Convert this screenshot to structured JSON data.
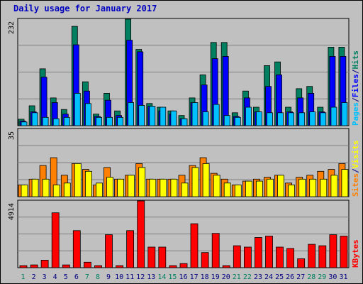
{
  "chart_data": {
    "type": "bar",
    "title": "Daily usage for January 2017",
    "categories": [
      "1",
      "2",
      "3",
      "4",
      "5",
      "6",
      "7",
      "8",
      "9",
      "10",
      "11",
      "12",
      "13",
      "14",
      "15",
      "16",
      "17",
      "18",
      "19",
      "20",
      "21",
      "22",
      "23",
      "24",
      "25",
      "26",
      "27",
      "28",
      "29",
      "30",
      "31"
    ],
    "weekend_days": [
      "1",
      "7",
      "8",
      "14",
      "15",
      "21",
      "22",
      "28",
      "29"
    ],
    "panels": [
      {
        "name": "pages-files-hits",
        "ymax_label": "232",
        "ymax": 232,
        "legend": [
          {
            "text": "Pages",
            "color": "#00c0ff"
          },
          {
            "text": "/",
            "color": "#000080"
          },
          {
            "text": "Files",
            "color": "#0000ff"
          },
          {
            "text": "/",
            "color": "#000080"
          },
          {
            "text": "Hits",
            "color": "#008060"
          }
        ],
        "series": [
          {
            "name": "Hits",
            "color": "#008060",
            "values": [
              14,
              43,
              123,
              60,
              35,
              215,
              95,
              25,
              70,
              32,
              232,
              165,
              48,
              40,
              32,
              22,
              60,
              110,
              180,
              180,
              28,
              75,
              40,
              130,
              138,
              40,
              80,
              85,
              40,
              170,
              170
            ]
          },
          {
            "name": "Files",
            "color": "#0000ff",
            "values": [
              10,
              30,
              105,
              50,
              25,
              175,
              75,
              20,
              55,
              22,
              185,
              160,
              42,
              32,
              25,
              15,
              50,
              88,
              145,
              150,
              20,
              60,
              30,
              85,
              110,
              30,
              60,
              70,
              30,
              150,
              150
            ]
          },
          {
            "name": "Pages",
            "color": "#00c0ff",
            "values": [
              8,
              28,
              18,
              15,
              18,
              70,
              48,
              18,
              18,
              18,
              50,
              44,
              42,
              40,
              32,
              15,
              50,
              30,
              46,
              22,
              18,
              40,
              30,
              28,
              28,
              28,
              28,
              30,
              28,
              40,
              50
            ]
          }
        ]
      },
      {
        "name": "sites-visits",
        "ymax_label": "35",
        "ymax": 35,
        "legend": [
          {
            "text": "Sites",
            "color": "#ff8000"
          },
          {
            "text": "/",
            "color": "#000080"
          },
          {
            "text": "Visits",
            "color": "#ffff00"
          }
        ],
        "series": [
          {
            "name": "Sites",
            "color": "#ff8000",
            "values": [
              6,
              9,
              16,
              20,
              11,
              17,
              14,
              6,
              15,
              9,
              11,
              17,
              9,
              9,
              9,
              11,
              16,
              20,
              12,
              9,
              6,
              8,
              9,
              10,
              11,
              7,
              10,
              11,
              13,
              14,
              17
            ]
          },
          {
            "name": "Visits",
            "color": "#ffff00",
            "values": [
              6,
              9,
              9,
              6,
              7,
              17,
              13,
              7,
              10,
              9,
              11,
              15,
              9,
              9,
              9,
              7,
              15,
              17,
              11,
              7,
              6,
              8,
              8,
              9,
              11,
              6,
              9,
              9,
              9,
              11,
              14
            ]
          }
        ]
      },
      {
        "name": "kbytes",
        "ymax_label": "4914",
        "ymax": 4914,
        "legend": [
          {
            "text": "KBytes",
            "color": "#ff0000"
          }
        ],
        "series": [
          {
            "name": "KBytes",
            "color": "#ff0000",
            "values": [
              150,
              200,
              550,
              4000,
              200,
              2700,
              400,
              150,
              2400,
              150,
              2700,
              4914,
              1500,
              1500,
              150,
              300,
              3200,
              1100,
              2500,
              150,
              1600,
              1500,
              2200,
              2300,
              1500,
              1400,
              650,
              1700,
              1600,
              2400,
              2300
            ]
          }
        ]
      }
    ]
  }
}
